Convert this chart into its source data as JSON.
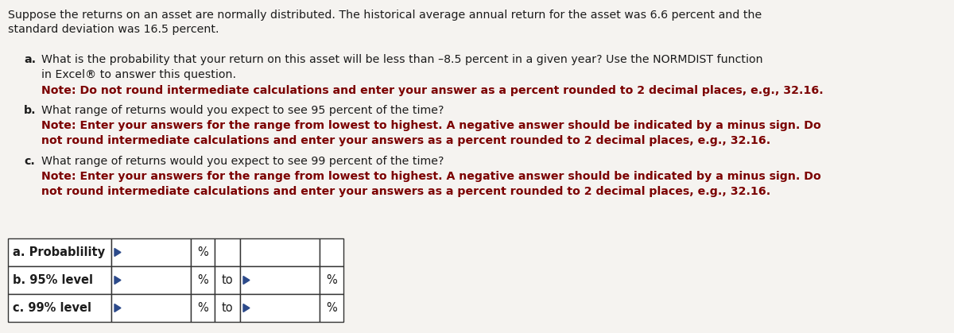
{
  "background_color": "#f5f3f0",
  "intro_line1": "Suppose the returns on an asset are normally distributed. The historical average annual return for the asset was 6.6 percent and the",
  "intro_line2": "standard deviation was 16.5 percent.",
  "q_a_text1": "What is the probability that your return on this asset will be less than –8.5 percent in a given year? Use the NORMDIST function",
  "q_a_text2": "in Excel® to answer this question.",
  "q_a_note": "Note: Do not round intermediate calculations and enter your answer as a percent rounded to 2 decimal places, e.g., 32.16.",
  "q_b_text": "What range of returns would you expect to see 95 percent of the time?",
  "q_b_note1": "Note: Enter your answers for the range from lowest to highest. A negative answer should be indicated by a minus sign. Do",
  "q_b_note2": "not round intermediate calculations and enter your answers as a percent rounded to 2 decimal places, e.g., 32.16.",
  "q_c_text": "What range of returns would you expect to see 99 percent of the time?",
  "q_c_note1": "Note: Enter your answers for the range from lowest to highest. A negative answer should be indicated by a minus sign. Do",
  "q_c_note2": "not round intermediate calculations and enter your answers as a percent rounded to 2 decimal places, e.g., 32.16.",
  "table_rows": [
    {
      "label": "a. Probablility",
      "has_to": false
    },
    {
      "label": "b. 95% level",
      "has_to": true
    },
    {
      "label": "c. 99% level",
      "has_to": true
    }
  ],
  "black_color": "#1c1c1c",
  "dark_red_color": "#7b0000",
  "border_color": "#2c4a8a",
  "table_border_color": "#333333",
  "intro_fontsize": 10.2,
  "q_fontsize": 10.2,
  "note_fontsize": 10.2,
  "table_label_fontsize": 10.5,
  "table_text_fontsize": 10.5
}
